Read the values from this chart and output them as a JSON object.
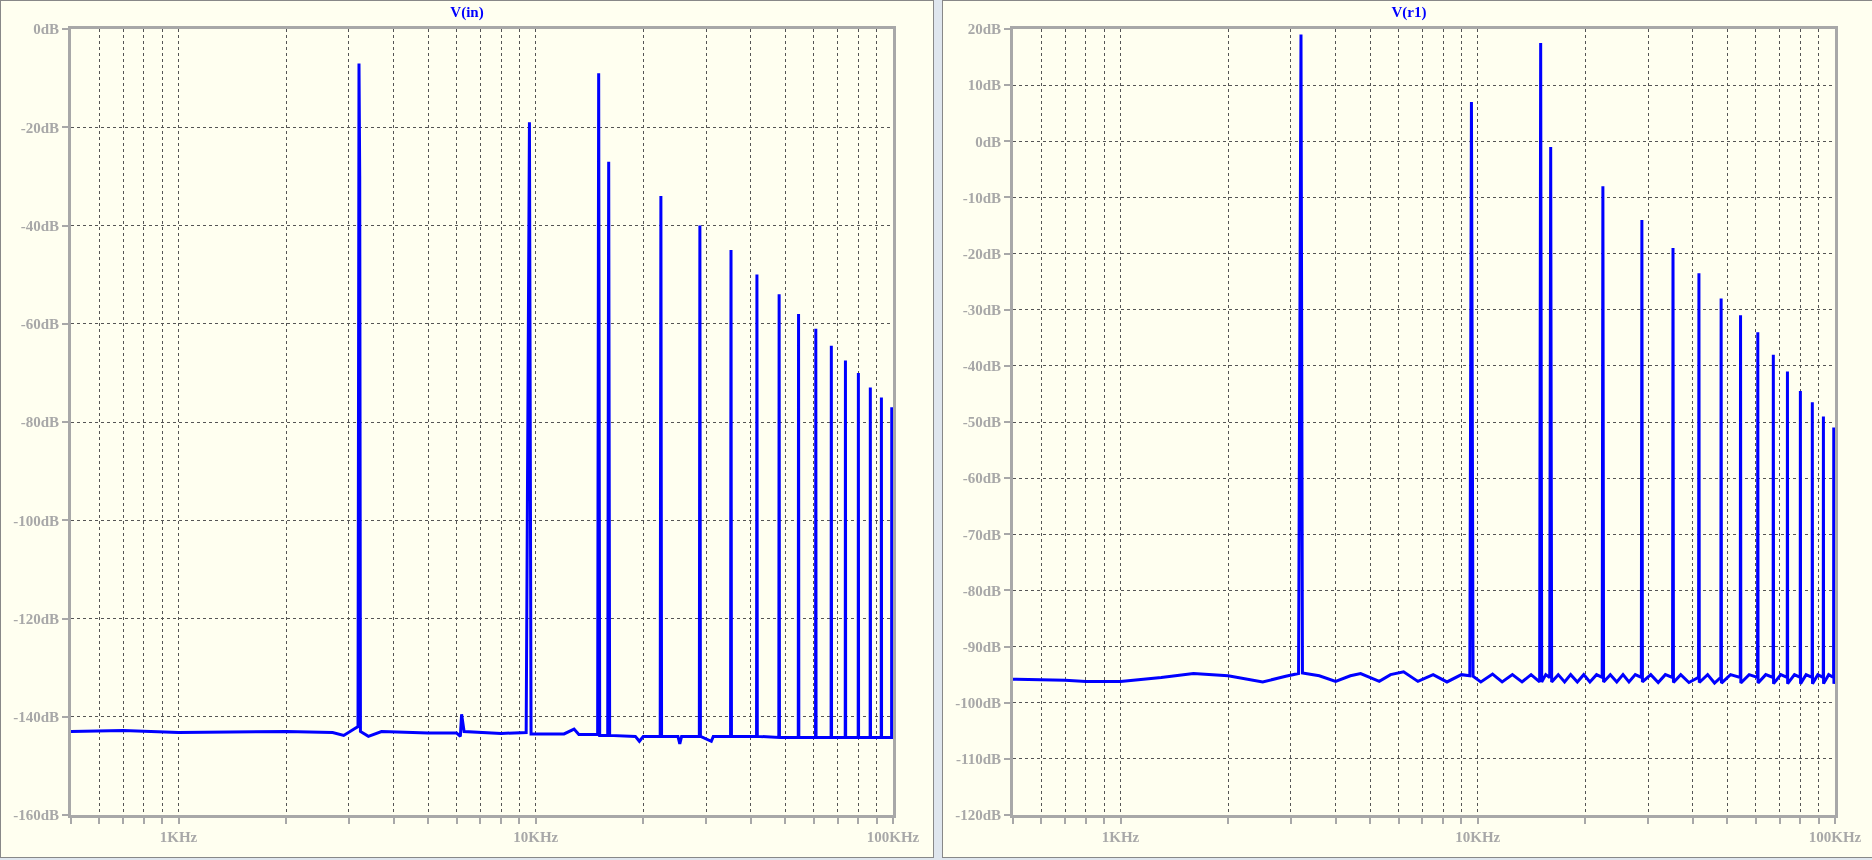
{
  "chart_data": [
    {
      "type": "line",
      "title": "V(in)",
      "log": "x",
      "grid": true,
      "xlim": [
        0.5,
        100
      ],
      "ylim": [
        -160,
        0
      ],
      "xticks": [
        {
          "value": 0.5,
          "label": null
        },
        {
          "value": 0.6,
          "label": null
        },
        {
          "value": 0.7,
          "label": null
        },
        {
          "value": 0.8,
          "label": null
        },
        {
          "value": 0.9,
          "label": null
        },
        {
          "value": 1,
          "label": "1KHz"
        },
        {
          "value": 2,
          "label": null
        },
        {
          "value": 3,
          "label": null
        },
        {
          "value": 4,
          "label": null
        },
        {
          "value": 5,
          "label": null
        },
        {
          "value": 6,
          "label": null
        },
        {
          "value": 7,
          "label": null
        },
        {
          "value": 8,
          "label": null
        },
        {
          "value": 9,
          "label": null
        },
        {
          "value": 10,
          "label": "10KHz"
        },
        {
          "value": 20,
          "label": null
        },
        {
          "value": 30,
          "label": null
        },
        {
          "value": 40,
          "label": null
        },
        {
          "value": 50,
          "label": null
        },
        {
          "value": 60,
          "label": null
        },
        {
          "value": 70,
          "label": null
        },
        {
          "value": 80,
          "label": null
        },
        {
          "value": 90,
          "label": null
        },
        {
          "value": 100,
          "label": "100KHz"
        }
      ],
      "yticks": [
        {
          "value": 0,
          "label": "0dB"
        },
        {
          "value": -20,
          "label": "-20dB"
        },
        {
          "value": -40,
          "label": "-40dB"
        },
        {
          "value": -60,
          "label": "-60dB"
        },
        {
          "value": -80,
          "label": "-80dB"
        },
        {
          "value": -100,
          "label": "-100dB"
        },
        {
          "value": -120,
          "label": "-120dB"
        },
        {
          "value": -140,
          "label": "-140dB"
        },
        {
          "value": -160,
          "label": "-160dB"
        }
      ],
      "x": [
        0.5,
        0.7,
        1,
        2,
        2.7,
        2.9,
        3.1,
        3.18,
        3.2,
        3.215,
        3.23,
        3.4,
        3.7,
        5,
        6,
        6.15,
        6.2,
        6.3,
        8,
        9.4,
        9.6,
        9.7,
        12,
        12.8,
        13.2,
        14.9,
        15,
        15.1,
        15.9,
        16,
        16.1,
        19,
        19.5,
        20,
        22.3,
        22.4,
        22.5,
        25,
        25.3,
        25.6,
        28.7,
        28.8,
        28.9,
        31,
        31.4,
        35.1,
        35.2,
        35.3,
        41.5,
        41.6,
        41.7,
        47.9,
        48,
        48.1,
        54.3,
        54.4,
        54.5,
        60.7,
        60.8,
        60.9,
        67.1,
        67.2,
        67.3,
        73.5,
        73.6,
        73.7,
        79.9,
        80,
        80.1,
        86.3,
        86.4,
        86.5,
        92.7,
        92.8,
        92.9,
        99.1,
        99.2,
        99.3,
        100
      ],
      "series": [
        {
          "color": "#0000ff",
          "values": [
            -143,
            -142.8,
            -143.2,
            -143,
            -143.2,
            -143.8,
            -142.5,
            -142,
            -7,
            -30,
            -143,
            -144,
            -143,
            -143.3,
            -143.3,
            -144,
            -139.5,
            -143,
            -143.4,
            -143.2,
            -19,
            -143.5,
            -143.5,
            -142.5,
            -143.6,
            -143.6,
            -9,
            -143.8,
            -143.8,
            -27,
            -143.8,
            -144,
            -145,
            -144,
            -144,
            -34,
            -144,
            -144,
            -145.5,
            -144,
            -144,
            -40,
            -144,
            -145,
            -144,
            -144,
            -45,
            -144,
            -144,
            -50,
            -144,
            -144.2,
            -54,
            -144.2,
            -144.2,
            -58,
            -144.2,
            -144.2,
            -61,
            -144.2,
            -144.2,
            -64.5,
            -144.2,
            -144.2,
            -67.5,
            -144.2,
            -144.2,
            -70,
            -144.2,
            -144.2,
            -73,
            -144.2,
            -144.2,
            -75,
            -144.2,
            -144.2,
            -77,
            -144.2,
            -144.2
          ]
        }
      ]
    },
    {
      "type": "line",
      "title": "V(r1)",
      "log": "x",
      "grid": true,
      "xlim": [
        0.5,
        100
      ],
      "ylim": [
        -120,
        20
      ],
      "xticks": [
        {
          "value": 0.5,
          "label": null
        },
        {
          "value": 0.6,
          "label": null
        },
        {
          "value": 0.7,
          "label": null
        },
        {
          "value": 0.8,
          "label": null
        },
        {
          "value": 0.9,
          "label": null
        },
        {
          "value": 1,
          "label": "1KHz"
        },
        {
          "value": 2,
          "label": null
        },
        {
          "value": 3,
          "label": null
        },
        {
          "value": 4,
          "label": null
        },
        {
          "value": 5,
          "label": null
        },
        {
          "value": 6,
          "label": null
        },
        {
          "value": 7,
          "label": null
        },
        {
          "value": 8,
          "label": null
        },
        {
          "value": 9,
          "label": null
        },
        {
          "value": 10,
          "label": "10KHz"
        },
        {
          "value": 20,
          "label": null
        },
        {
          "value": 30,
          "label": null
        },
        {
          "value": 40,
          "label": null
        },
        {
          "value": 50,
          "label": null
        },
        {
          "value": 60,
          "label": null
        },
        {
          "value": 70,
          "label": null
        },
        {
          "value": 80,
          "label": null
        },
        {
          "value": 90,
          "label": null
        },
        {
          "value": 100,
          "label": "100KHz"
        }
      ],
      "yticks": [
        {
          "value": 20,
          "label": "20dB"
        },
        {
          "value": 10,
          "label": "10dB"
        },
        {
          "value": 0,
          "label": "0dB"
        },
        {
          "value": -10,
          "label": "-10dB"
        },
        {
          "value": -20,
          "label": "-20dB"
        },
        {
          "value": -30,
          "label": "-30dB"
        },
        {
          "value": -40,
          "label": "-40dB"
        },
        {
          "value": -50,
          "label": "-50dB"
        },
        {
          "value": -60,
          "label": "-60dB"
        },
        {
          "value": -70,
          "label": "-70dB"
        },
        {
          "value": -80,
          "label": "-80dB"
        },
        {
          "value": -90,
          "label": "-90dB"
        },
        {
          "value": -100,
          "label": "-100dB"
        },
        {
          "value": -110,
          "label": "-110dB"
        },
        {
          "value": -120,
          "label": "-120dB"
        }
      ],
      "x": [
        0.5,
        0.7,
        0.8,
        1,
        1.3,
        1.6,
        2,
        2.5,
        2.9,
        3.15,
        3.2,
        3.23,
        3.6,
        4,
        4.4,
        4.7,
        5.3,
        5.7,
        6.2,
        6.8,
        7.5,
        8.2,
        9,
        9.5,
        9.6,
        9.7,
        10.2,
        11,
        11.7,
        12.5,
        13.3,
        14.1,
        14.9,
        15,
        15.1,
        15.5,
        15.9,
        16,
        16.1,
        16.8,
        17.5,
        18.2,
        19,
        19.8,
        20.6,
        21.5,
        22.3,
        22.4,
        22.5,
        23.5,
        24.5,
        25.5,
        26.5,
        27.6,
        28.7,
        28.8,
        28.9,
        30.5,
        32,
        33.5,
        35.1,
        35.2,
        35.3,
        37,
        39,
        41.5,
        41.6,
        41.7,
        44,
        46,
        47.9,
        48,
        48.1,
        51,
        54.3,
        54.4,
        54.5,
        57.5,
        60.7,
        60.8,
        60.9,
        64,
        67.1,
        67.2,
        67.3,
        70.5,
        73.5,
        73.6,
        73.7,
        77,
        79.9,
        80,
        80.1,
        83,
        86.3,
        86.4,
        86.5,
        89.5,
        92.7,
        92.8,
        92.9,
        96,
        99.1,
        99.2,
        99.3,
        100
      ],
      "series": [
        {
          "color": "#0000ff",
          "values": [
            -95.8,
            -96,
            -96.2,
            -96.2,
            -95.5,
            -94.8,
            -95.2,
            -96.3,
            -95.3,
            -94.8,
            19,
            -94.7,
            -95.2,
            -96.2,
            -95.2,
            -94.8,
            -96.2,
            -95,
            -94.5,
            -96.2,
            -95,
            -96.3,
            -95,
            -95.2,
            7,
            -95.3,
            -96.3,
            -94.9,
            -96.3,
            -95,
            -96.3,
            -95,
            -96.3,
            17.5,
            -96.3,
            -95,
            -95.5,
            -1,
            -96.3,
            -95,
            -96.3,
            -95,
            -96.3,
            -95,
            -96.3,
            -95,
            -95.5,
            -8,
            -96.3,
            -95,
            -96.3,
            -95,
            -96.3,
            -95,
            -95.5,
            -14,
            -96.3,
            -95,
            -96.4,
            -95,
            -95.5,
            -19,
            -96.4,
            -95,
            -96.4,
            -95.5,
            -23.5,
            -96.4,
            -95,
            -96.5,
            -95.5,
            -28,
            -96.5,
            -95,
            -95.5,
            -31,
            -96.5,
            -95,
            -95.5,
            -34,
            -96.5,
            -95,
            -95.5,
            -38,
            -96.6,
            -95,
            -95.5,
            -41,
            -96.6,
            -95,
            -95.5,
            -44.5,
            -96.6,
            -95,
            -95.5,
            -46.5,
            -96.6,
            -95,
            -95.5,
            -49,
            -96.6,
            -95,
            -95.5,
            -51,
            -96.6,
            -95.8
          ]
        }
      ]
    }
  ]
}
